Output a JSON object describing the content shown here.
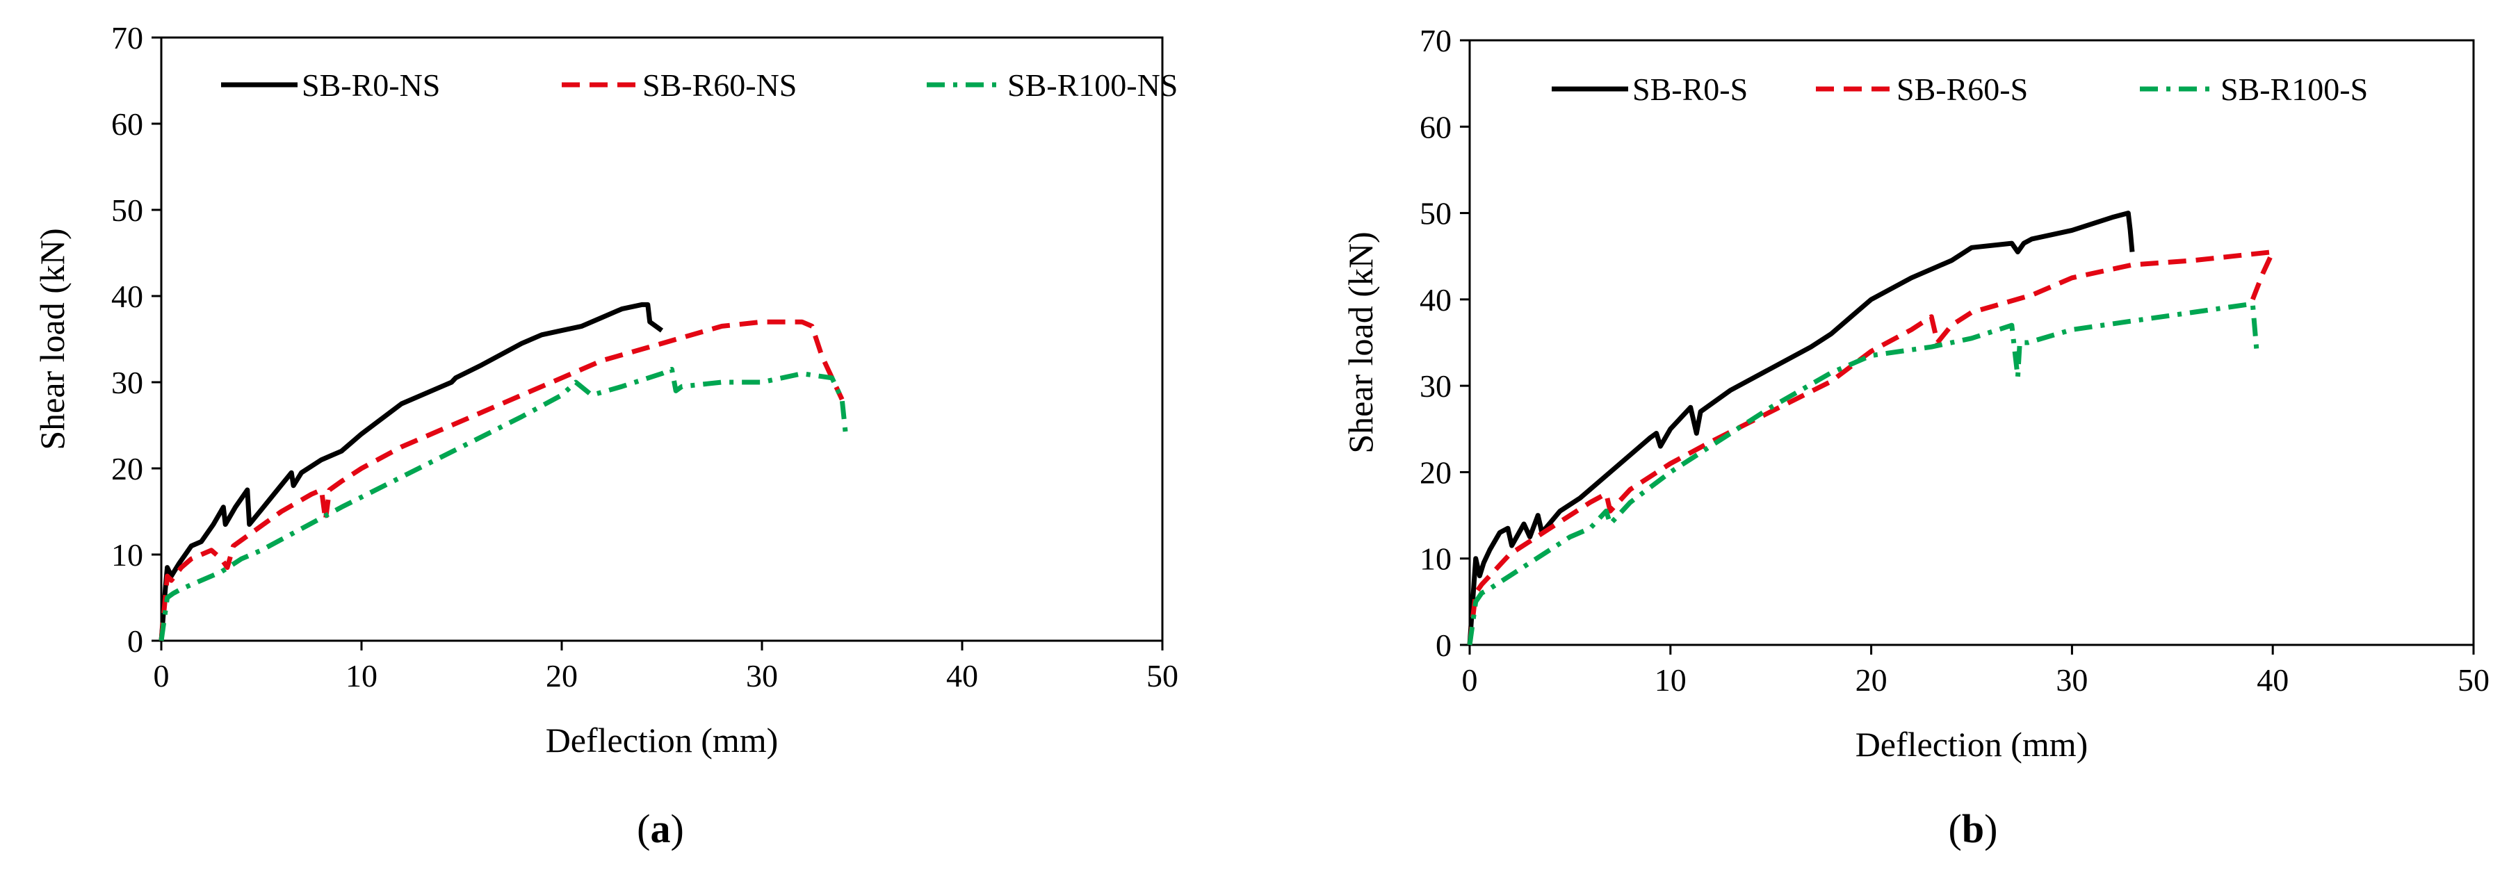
{
  "panels": [
    {
      "caption": "a",
      "chart_data": {
        "type": "line",
        "xlabel": "Deflection (mm)",
        "ylabel": "Shear load (kN)",
        "xlim": [
          0,
          50
        ],
        "ylim": [
          0,
          70
        ],
        "xticks": [
          "0",
          "10",
          "20",
          "30",
          "40",
          "50"
        ],
        "yticks": [
          "0",
          "10",
          "20",
          "30",
          "40",
          "50",
          "60",
          "70"
        ],
        "grid": false,
        "legend_position": "top",
        "series": [
          {
            "name": "SB-R0-NS",
            "color": "#000000",
            "dash": "solid",
            "x": [
              0,
              0.2,
              0.3,
              0.5,
              0.9,
              1.5,
              2.0,
              2.6,
              3.1,
              3.2,
              3.7,
              4.3,
              4.4,
              5.1,
              5.8,
              6.5,
              6.6,
              7.0,
              8.0,
              8.5,
              9.0,
              10.0,
              12.0,
              14.0,
              14.5,
              14.7,
              16.0,
              18.0,
              19.0,
              20.0,
              21.0,
              22.0,
              23.0,
              24.0,
              24.3,
              24.4,
              25.0
            ],
            "y": [
              0,
              6,
              8.5,
              7.5,
              9,
              11,
              11.5,
              13.5,
              15.5,
              13.5,
              15.5,
              17.5,
              13.5,
              15.5,
              17.5,
              19.5,
              18.0,
              19.5,
              21,
              21.5,
              22,
              24,
              27.5,
              29.5,
              30,
              30.5,
              32,
              34.5,
              35.5,
              36,
              36.5,
              37.5,
              38.5,
              39,
              39,
              37,
              36
            ]
          },
          {
            "name": "SB-R60-NS",
            "color": "#e30613",
            "dash": "dashed",
            "x": [
              0,
              0.3,
              0.5,
              1.0,
              1.5,
              2.0,
              2.5,
              3.0,
              3.3,
              3.6,
              4.5,
              6.0,
              7.5,
              8.0,
              8.2,
              8.4,
              9.0,
              10.0,
              12.0,
              15.0,
              18.0,
              20.0,
              22.0,
              25.0,
              28.0,
              30.0,
              32.0,
              32.5,
              33.0,
              34.0
            ],
            "y": [
              0,
              7.5,
              7,
              8.5,
              9.5,
              10,
              10.5,
              9.5,
              8.5,
              11,
              12.5,
              15,
              17,
              17.5,
              14,
              17.5,
              18.5,
              20,
              22.5,
              25.5,
              28.5,
              30.5,
              32.5,
              34.5,
              36.5,
              37,
              37,
              36.5,
              33,
              28
            ]
          },
          {
            "name": "SB-R100-NS",
            "color": "#00a651",
            "dash": "dashdot",
            "x": [
              0,
              0.3,
              0.6,
              1.0,
              1.5,
              2.0,
              3.0,
              4.0,
              5.0,
              7.0,
              9.0,
              12.0,
              15.0,
              18.0,
              20.0,
              20.7,
              21.5,
              23.0,
              25.0,
              25.5,
              25.7,
              26.0,
              28.0,
              30.0,
              32.0,
              33.5,
              34.0,
              34.2
            ],
            "y": [
              0,
              5,
              5.5,
              6,
              6.5,
              7,
              8,
              9.5,
              10.5,
              13,
              15.5,
              19,
              22.5,
              26,
              28.5,
              30,
              28.5,
              29.5,
              31,
              31.5,
              29,
              29.5,
              30,
              30,
              31,
              30.5,
              28,
              23.5
            ]
          }
        ]
      }
    },
    {
      "caption": "b",
      "chart_data": {
        "type": "line",
        "xlabel": "Deflection (mm)",
        "ylabel": "Shear load (kN)",
        "xlim": [
          0,
          50
        ],
        "ylim": [
          0,
          70
        ],
        "xticks": [
          "0",
          "10",
          "20",
          "30",
          "40",
          "50"
        ],
        "yticks": [
          "0",
          "10",
          "20",
          "30",
          "40",
          "50",
          "60",
          "70"
        ],
        "grid": false,
        "legend_position": "top",
        "series": [
          {
            "name": "SB-R0-S",
            "color": "#000000",
            "dash": "solid",
            "x": [
              0,
              0.3,
              0.5,
              0.7,
              1.0,
              1.5,
              1.9,
              2.1,
              2.7,
              3.0,
              3.4,
              3.6,
              4.5,
              5.5,
              7.0,
              9.0,
              9.3,
              9.5,
              10.0,
              11.0,
              11.3,
              11.5,
              13.0,
              15.0,
              17.0,
              18.0,
              19.0,
              20.0,
              22.0,
              24.0,
              25.0,
              27.0,
              27.3,
              27.6,
              28.0,
              30.0,
              32.0,
              32.8,
              32.9,
              33.0
            ],
            "y": [
              0,
              10,
              8,
              9.5,
              11,
              13,
              13.5,
              11.5,
              14,
              12.5,
              15,
              13,
              15.5,
              17,
              20,
              24,
              24.5,
              23,
              25,
              27.5,
              24.5,
              27,
              29.5,
              32,
              34.5,
              36,
              38,
              40,
              42.5,
              44.5,
              46,
              46.5,
              45.5,
              46.5,
              47,
              48,
              49.5,
              50,
              48,
              45.5
            ]
          },
          {
            "name": "SB-R60-S",
            "color": "#e30613",
            "dash": "dashed",
            "x": [
              0,
              0.3,
              0.6,
              1.0,
              2.0,
              3.0,
              4.0,
              5.0,
              6.0,
              6.8,
              7.0,
              8.0,
              10.0,
              12.0,
              15.0,
              18.0,
              20.0,
              22.0,
              23.0,
              23.3,
              24.0,
              25.0,
              28.0,
              30.0,
              33.0,
              36.0,
              38.0,
              40.0,
              39.5,
              39.0
            ],
            "y": [
              0,
              6,
              7,
              8,
              10.5,
              12,
              13.5,
              15,
              16.5,
              17.5,
              15.5,
              18,
              21,
              23.5,
              27,
              30.5,
              34,
              36.5,
              38,
              35,
              37,
              38.5,
              40.5,
              42.5,
              44,
              44.5,
              45,
              45.5,
              43,
              40
            ]
          },
          {
            "name": "SB-R100-S",
            "color": "#00a651",
            "dash": "dashdot",
            "x": [
              0,
              0.3,
              0.6,
              1.0,
              2.0,
              3.0,
              4.0,
              5.0,
              6.0,
              6.8,
              7.0,
              8.0,
              10.0,
              12.0,
              15.0,
              18.0,
              20.0,
              23.0,
              25.0,
              27.0,
              27.3,
              27.4,
              27.8,
              30.0,
              33.0,
              36.0,
              39.0,
              39.2
            ],
            "y": [
              0,
              5,
              6,
              6.5,
              8,
              9.5,
              11,
              12.5,
              13.5,
              15.5,
              14,
              16.5,
              20,
              23,
              27.5,
              31.5,
              33.5,
              34.5,
              35.5,
              37,
              31,
              35,
              35,
              36.5,
              37.5,
              38.5,
              39.5,
              34
            ]
          }
        ]
      }
    }
  ]
}
